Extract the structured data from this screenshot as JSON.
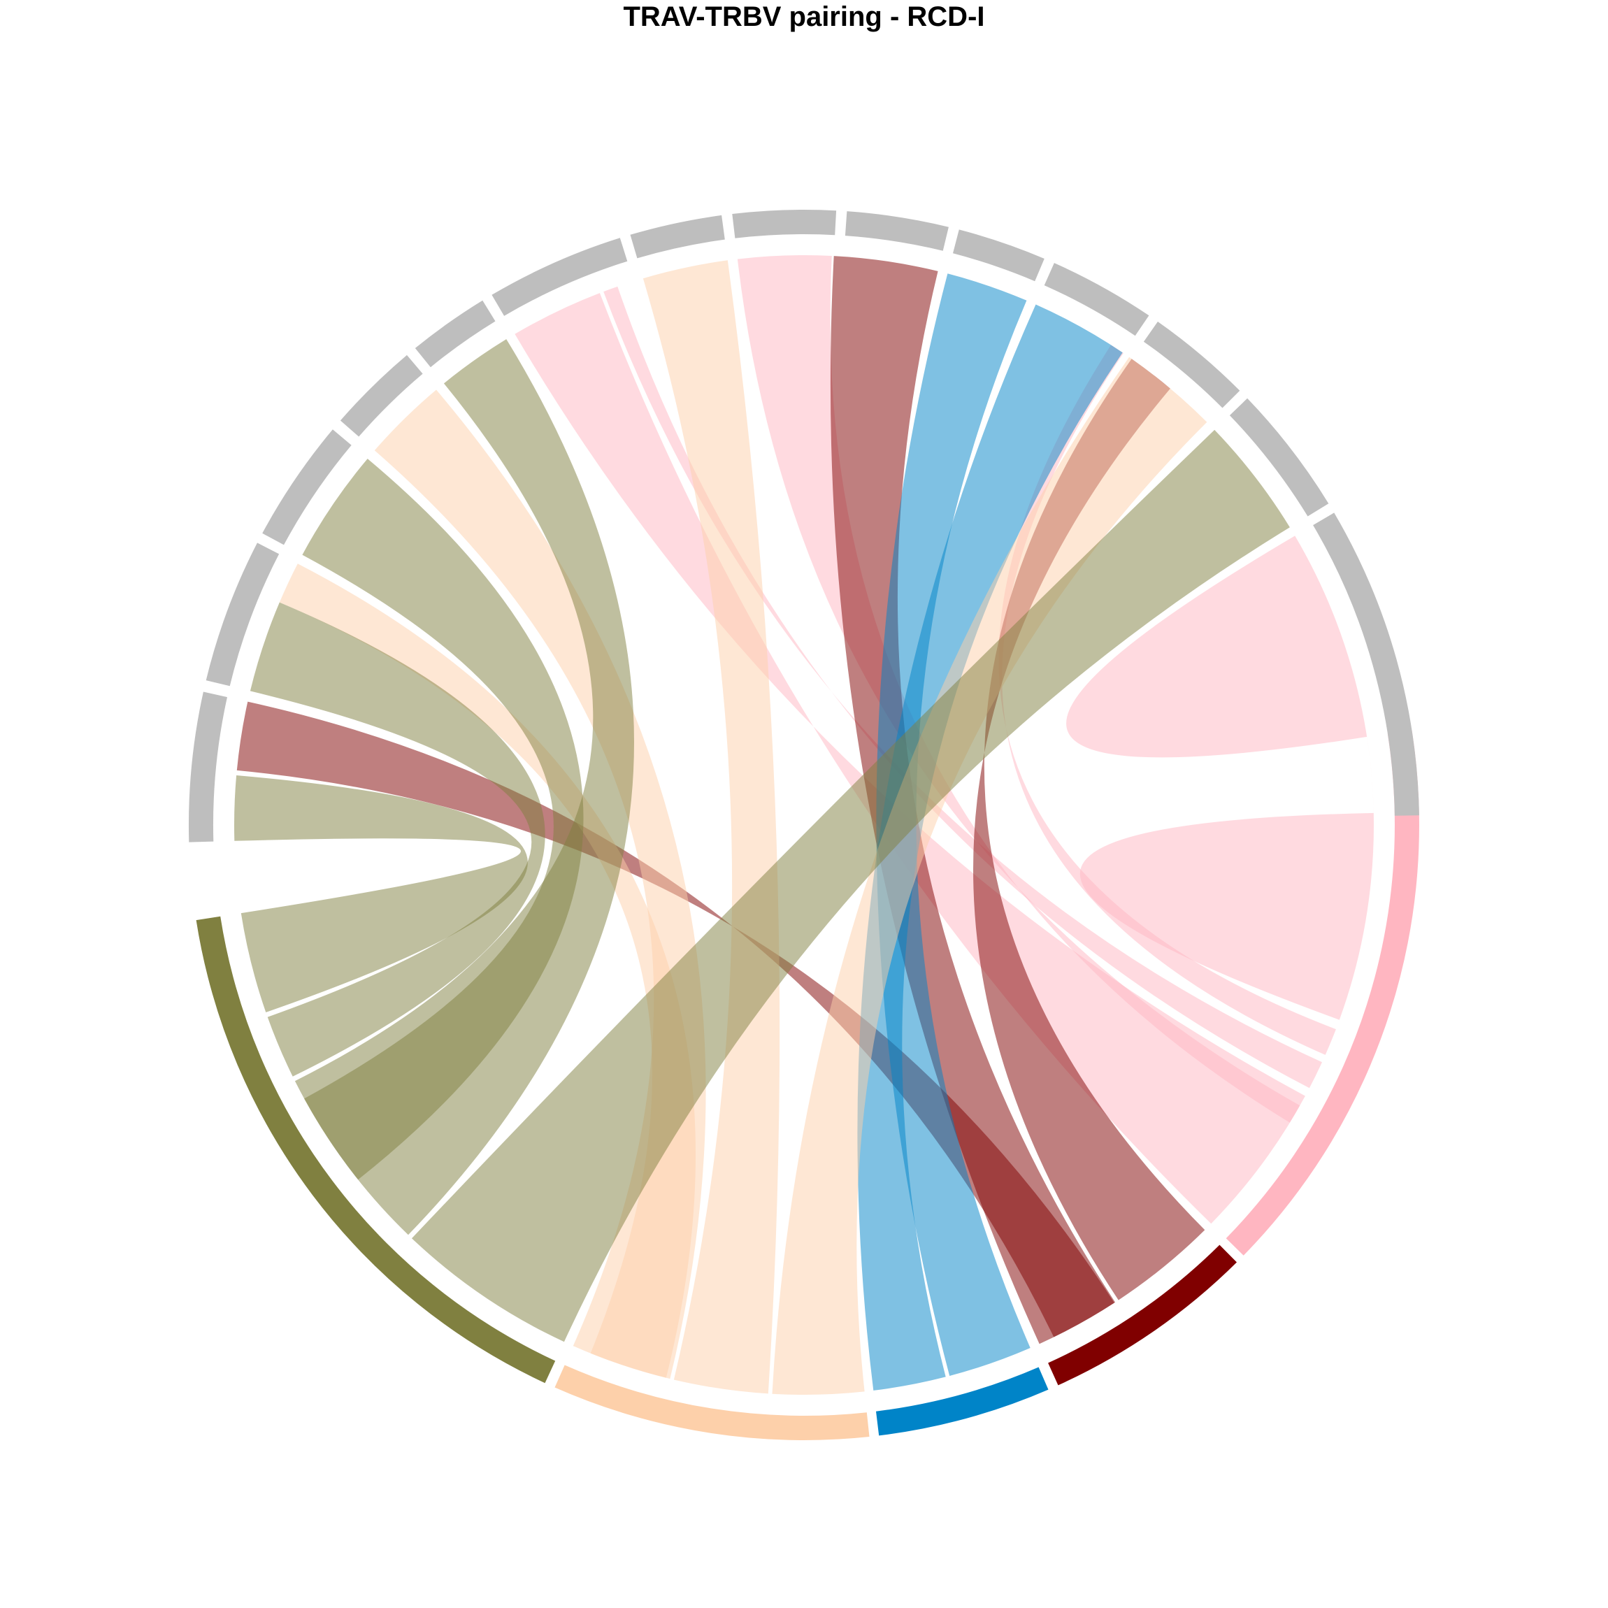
{
  "title": "TRAV-TRBV pairing - RCD-I",
  "colors": {
    "olive": "#808040",
    "peach": "#fdd0aa",
    "blue": "#0084c8",
    "maroon": "#800000",
    "pink": "#ffb6c1",
    "gray": "#bebebe"
  },
  "chart_data": {
    "type": "chord",
    "gap_deg": 0.75,
    "sectors": [
      {
        "id": "s0",
        "group": "right",
        "color": "pink",
        "start": -8.9,
        "end": 44.4
      },
      {
        "id": "s1",
        "group": "right",
        "color": "maroon",
        "start": 45.3,
        "end": 65.6
      },
      {
        "id": "s2",
        "group": "right",
        "color": "blue",
        "start": 66.6,
        "end": 83.0
      },
      {
        "id": "s3",
        "group": "right",
        "color": "peach",
        "start": 83.9,
        "end": 113.9
      },
      {
        "id": "s4",
        "group": "right",
        "color": "olive",
        "start": 114.9,
        "end": 171.1
      },
      {
        "id": "s5",
        "group": "left",
        "color": "gray",
        "start": 178.4,
        "end": 192.5
      },
      {
        "id": "s6",
        "group": "left",
        "color": "gray",
        "start": 193.6,
        "end": 207.3
      },
      {
        "id": "s7",
        "group": "left",
        "color": "gray",
        "start": 208.3,
        "end": 220.0
      },
      {
        "id": "s8",
        "group": "left",
        "color": "gray",
        "start": 221.1,
        "end": 229.8
      },
      {
        "id": "s9",
        "group": "left",
        "color": "gray",
        "start": 230.8,
        "end": 238.5
      },
      {
        "id": "s10",
        "group": "left",
        "color": "gray",
        "start": 239.5,
        "end": 252.6
      },
      {
        "id": "s11",
        "group": "left",
        "color": "gray",
        "start": 253.6,
        "end": 262.3
      },
      {
        "id": "s12",
        "group": "left",
        "color": "gray",
        "start": 263.3,
        "end": 273.0
      },
      {
        "id": "s13",
        "group": "left",
        "color": "gray",
        "start": 274.0,
        "end": 283.6
      },
      {
        "id": "s14",
        "group": "left",
        "color": "gray",
        "start": 284.6,
        "end": 293.0
      },
      {
        "id": "s15",
        "group": "left",
        "color": "gray",
        "start": 294.0,
        "end": 304.1
      },
      {
        "id": "s16",
        "group": "left",
        "color": "gray",
        "start": 305.1,
        "end": 315.1
      },
      {
        "id": "s17",
        "group": "left",
        "color": "gray",
        "start": 316.1,
        "end": 328.5
      },
      {
        "id": "s18",
        "group": "left",
        "color": "gray",
        "start": 329.5,
        "end": 359.1
      }
    ],
    "links": [
      {
        "from": "s0",
        "a": [
          -8.9,
          20.0
        ],
        "b": [
          358.8,
          329.5
        ],
        "color": "pink"
      },
      {
        "from": "s0",
        "a": [
          21.0,
          23.8
        ],
        "b": [
          304.1,
          302.6
        ],
        "color": "pink"
      },
      {
        "from": "s0",
        "a": [
          24.6,
          27.5
        ],
        "b": [
          250.9,
          249.4
        ],
        "color": "pink"
      },
      {
        "from": "s0",
        "a": [
          28.4,
          44.4
        ],
        "b": [
          249.0,
          239.5
        ],
        "color": "pink"
      },
      {
        "from": "s0",
        "a": [
          29.5,
          31.5
        ],
        "b": [
          272.8,
          263.3
        ],
        "color": "pink"
      },
      {
        "from": "s1",
        "a": [
          45.3,
          56.5
        ],
        "b": [
          310.0,
          305.1
        ],
        "color": "maroon"
      },
      {
        "from": "s1",
        "a": [
          56.9,
          65.6
        ],
        "b": [
          273.0,
          283.6
        ],
        "color": "maroon"
      },
      {
        "from": "s1",
        "a": [
          57.0,
          64.0
        ],
        "b": [
          192.5,
          185.5
        ],
        "color": "maroon"
      },
      {
        "from": "s2",
        "a": [
          66.6,
          75.2
        ],
        "b": [
          284.6,
          293.0
        ],
        "color": "blue"
      },
      {
        "from": "s2",
        "a": [
          75.6,
          83.0
        ],
        "b": [
          294.0,
          304.0
        ],
        "color": "blue"
      },
      {
        "from": "s3",
        "a": [
          83.9,
          93.2
        ],
        "b": [
          304.8,
          315.0
        ],
        "color": "peach"
      },
      {
        "from": "s3",
        "a": [
          93.6,
          103.2
        ],
        "b": [
          253.6,
          262.3
        ],
        "color": "peach"
      },
      {
        "from": "s3",
        "a": [
          103.6,
          113.9
        ],
        "b": [
          221.1,
          229.8
        ],
        "color": "peach"
      },
      {
        "from": "s3",
        "a": [
          104.0,
          112.0
        ],
        "b": [
          203.0,
          207.3
        ],
        "color": "peach"
      },
      {
        "from": "s4",
        "a": [
          114.9,
          133.5
        ],
        "b": [
          316.1,
          328.5
        ],
        "color": "olive"
      },
      {
        "from": "s4",
        "a": [
          134.0,
          153.3
        ],
        "b": [
          230.8,
          238.5
        ],
        "color": "olive"
      },
      {
        "from": "s4",
        "a": [
          141.5,
          151.3
        ],
        "b": [
          208.3,
          220.0
        ],
        "color": "olive"
      },
      {
        "from": "s4",
        "a": [
          153.8,
          160.3
        ],
        "b": [
          193.6,
          203.0
        ],
        "color": "olive"
      },
      {
        "from": "s4",
        "a": [
          160.8,
          171.1
        ],
        "b": [
          178.4,
          185.0
        ],
        "color": "olive"
      }
    ]
  }
}
